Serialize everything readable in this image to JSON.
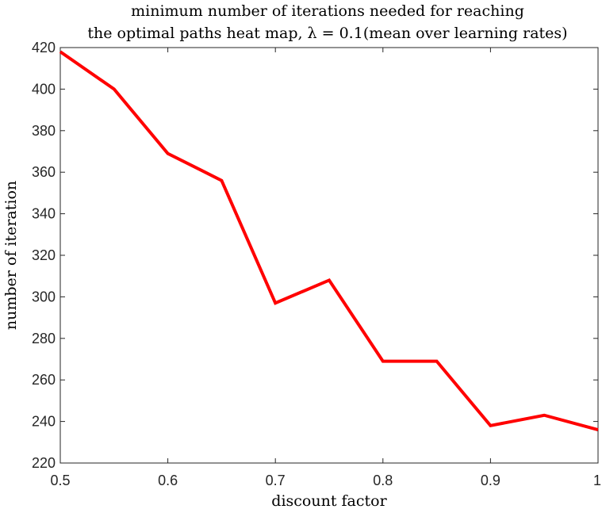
{
  "chart_data": {
    "type": "line",
    "title_lines": [
      "minimum number of iterations needed for reaching",
      "the optimal paths heat map, λ = 0.1(mean over learning rates)"
    ],
    "xlabel": "discount factor",
    "ylabel": "number of iteration",
    "xlim": [
      0.5,
      1
    ],
    "ylim": [
      220,
      420
    ],
    "x_ticks": [
      0.5,
      0.6,
      0.7,
      0.8,
      0.9,
      1
    ],
    "x_tick_labels": [
      "0.5",
      "0.6",
      "0.7",
      "0.8",
      "0.9",
      "1"
    ],
    "y_ticks": [
      220,
      240,
      260,
      280,
      300,
      320,
      340,
      360,
      380,
      400,
      420
    ],
    "y_tick_labels": [
      "220",
      "240",
      "260",
      "280",
      "300",
      "320",
      "340",
      "360",
      "380",
      "400",
      "420"
    ],
    "grid": false,
    "series": [
      {
        "color": "#ff0000",
        "x": [
          0.5,
          0.55,
          0.6,
          0.65,
          0.7,
          0.75,
          0.8,
          0.85,
          0.9,
          0.95,
          1.0
        ],
        "y": [
          418,
          400,
          369,
          356,
          297,
          308,
          269,
          269,
          238,
          243,
          236
        ]
      }
    ]
  }
}
